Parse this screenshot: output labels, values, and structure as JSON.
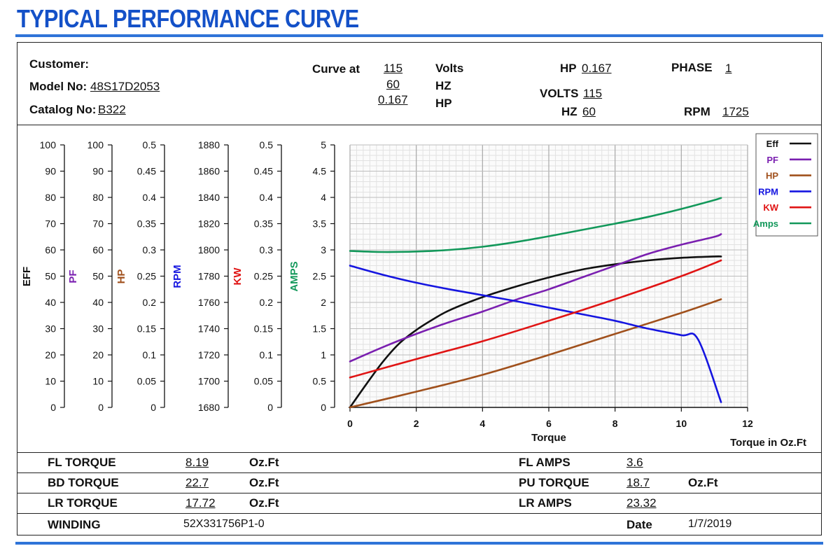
{
  "page_title": "TYPICAL PERFORMANCE CURVE",
  "header": {
    "customer_label": "Customer:",
    "model_label": "Model No:",
    "model_value": "48S17D2053",
    "catalog_label": "Catalog No:",
    "catalog_value": "B322",
    "curve_at_label": "Curve at",
    "curve_at_values": [
      "115",
      "60",
      "0.167"
    ],
    "curve_at_units": [
      "Volts",
      "HZ",
      "HP"
    ],
    "hp_label": "HP",
    "hp_value": "0.167",
    "volts_label": "VOLTS",
    "volts_value": "115",
    "hz_label": "HZ",
    "hz_value": "60",
    "phase_label": "PHASE",
    "phase_value": "1",
    "rpm_label": "RPM",
    "rpm_value": "1725"
  },
  "footer": {
    "fl_torque_label": "FL TORQUE",
    "fl_torque_value": "8.19",
    "fl_torque_unit": "Oz.Ft",
    "bd_torque_label": "BD TORQUE",
    "bd_torque_value": "22.7",
    "bd_torque_unit": "Oz.Ft",
    "lr_torque_label": "LR TORQUE",
    "lr_torque_value": "17.72",
    "lr_torque_unit": "Oz.Ft",
    "fl_amps_label": "FL AMPS",
    "fl_amps_value": "3.6",
    "pu_torque_label": "PU TORQUE",
    "pu_torque_value": "18.7",
    "pu_torque_unit": "Oz.Ft",
    "lr_amps_label": "LR AMPS",
    "lr_amps_value": "23.32",
    "winding_label": "WINDING",
    "winding_value": "52X331756P1-0",
    "date_label": "Date",
    "date_value": "1/7/2019"
  },
  "chart_data": {
    "type": "line",
    "xlabel": "Torque",
    "xlabel_secondary": "Torque in Oz.Ft",
    "xlim": [
      0,
      12
    ],
    "x_ticks": [
      "0",
      "2",
      "4",
      "6",
      "8",
      "10",
      "12"
    ],
    "grid": true,
    "legend_position": "top-right",
    "axes": [
      {
        "label": "EFF",
        "color": "#111111",
        "min": 0,
        "max": 100,
        "ticks": [
          "0",
          "10",
          "20",
          "30",
          "40",
          "50",
          "60",
          "70",
          "80",
          "90",
          "100"
        ]
      },
      {
        "label": "PF",
        "color": "#7a1fb0",
        "min": 0,
        "max": 100,
        "ticks": [
          "0",
          "10",
          "20",
          "30",
          "40",
          "50",
          "60",
          "70",
          "80",
          "90",
          "100"
        ]
      },
      {
        "label": "HP",
        "color": "#a0501c",
        "min": 0,
        "max": 0.5,
        "ticks": [
          "0",
          "0.05",
          "0.1",
          "0.15",
          "0.2",
          "0.25",
          "0.3",
          "0.35",
          "0.4",
          "0.45",
          "0.5"
        ]
      },
      {
        "label": "RPM",
        "color": "#1515e0",
        "min": 1680,
        "max": 1880,
        "ticks": [
          "1680",
          "1700",
          "1720",
          "1740",
          "1760",
          "1780",
          "1800",
          "1820",
          "1840",
          "1860",
          "1880"
        ]
      },
      {
        "label": "KW",
        "color": "#e01414",
        "min": 0,
        "max": 0.5,
        "ticks": [
          "0",
          "0.05",
          "0.1",
          "0.15",
          "0.2",
          "0.25",
          "0.3",
          "0.35",
          "0.4",
          "0.45",
          "0.5"
        ]
      },
      {
        "label": "AMPS",
        "color": "#12985a",
        "min": 0,
        "max": 5,
        "ticks": [
          "0",
          "0.5",
          "1",
          "1.5",
          "2",
          "2.5",
          "3",
          "3.5",
          "4",
          "4.5",
          "5"
        ]
      }
    ],
    "series": [
      {
        "name": "Eff",
        "color": "#111111",
        "axis": 0,
        "x": [
          0,
          0.5,
          1,
          1.5,
          2,
          2.5,
          3,
          4,
          5,
          6,
          7,
          8,
          9,
          10,
          11,
          11.2
        ],
        "y": [
          0,
          9,
          17.5,
          24.5,
          29.5,
          33.5,
          37,
          42,
          46,
          49.5,
          52.5,
          54.5,
          56,
          57,
          57.5,
          57.5
        ]
      },
      {
        "name": "PF",
        "color": "#7a1fb0",
        "axis": 1,
        "x": [
          0,
          1,
          2,
          3,
          4,
          5,
          6,
          7,
          8,
          9,
          10,
          11,
          11.2
        ],
        "y": [
          17.5,
          23,
          28,
          32.5,
          36.5,
          41,
          45,
          49.5,
          54,
          58.5,
          62,
          65,
          66
        ]
      },
      {
        "name": "HP",
        "color": "#a0501c",
        "axis": 2,
        "x": [
          0,
          2,
          4,
          6,
          8,
          10,
          11.2
        ],
        "y": [
          0,
          0.03,
          0.062,
          0.1,
          0.14,
          0.18,
          0.206
        ]
      },
      {
        "name": "RPM",
        "color": "#1515e0",
        "axis": 3,
        "x": [
          0,
          1,
          2,
          3,
          4,
          5,
          6,
          7,
          8,
          9,
          10,
          10.5,
          11.2
        ],
        "y": [
          1788,
          1781,
          1775,
          1770,
          1765.5,
          1761,
          1756,
          1751,
          1746,
          1740,
          1735,
          1732,
          1684
        ]
      },
      {
        "name": "KW",
        "color": "#e01414",
        "axis": 4,
        "x": [
          0,
          2,
          4,
          6,
          8,
          10,
          11.2
        ],
        "y": [
          0.057,
          0.092,
          0.126,
          0.165,
          0.206,
          0.25,
          0.28
        ]
      },
      {
        "name": "Amps",
        "color": "#12985a",
        "axis": 5,
        "x": [
          0,
          1,
          2,
          3,
          4,
          5,
          6,
          7,
          8,
          9,
          10,
          11,
          11.2
        ],
        "y": [
          2.98,
          2.96,
          2.97,
          3.0,
          3.06,
          3.15,
          3.26,
          3.38,
          3.5,
          3.63,
          3.78,
          3.95,
          3.99
        ]
      }
    ]
  }
}
